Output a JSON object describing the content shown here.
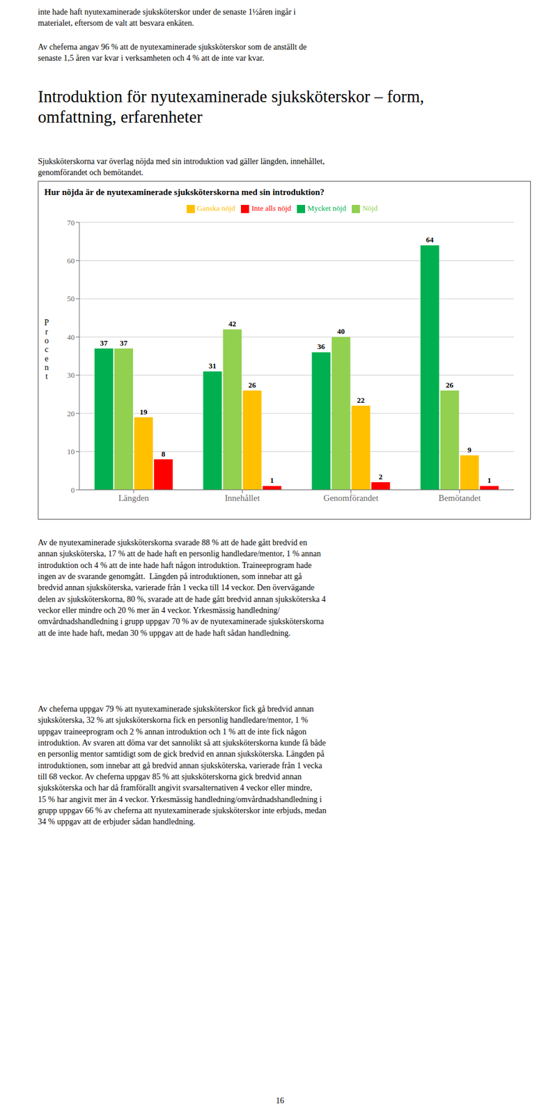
{
  "page": {
    "top_text": [
      "inte hade haft nyutexaminerade sjuksköterskor under de senaste 1½åren ingår i",
      "materialet, eftersom de valt att besvara enkäten."
    ],
    "para1": [
      "Av cheferna angav 96 % att de nyutexaminerade sjuksköterskor som de anställt de",
      "senaste 1,5 åren var kvar i verksamheten och 4 % att de inte var kvar."
    ],
    "heading": [
      "Introduktion för nyutexaminerade sjuksköterskor – form,",
      "omfattning, erfarenheter"
    ],
    "subheading": [
      "Sjuksköterskorna var överlag nöjda med sin introduktion vad gäller längden, innehållet,",
      "genomförandet och bemötandet."
    ],
    "body1": [
      "Av de nyutexaminerade sjuksköterskorna svarade 88 % att de hade gått bredvid en",
      "annan sjuksköterska, 17 % att de hade haft en personlig handledare/mentor, 1 % annan",
      "introduktion och 4 % att de inte hade haft någon introduktion. Traineeprogram hade",
      "ingen av de svarande genomgått.  Längden på introduktionen, som innebar att gå",
      "bredvid annan sjuksköterska, varierade från 1 vecka till 14 veckor. Den övervägande",
      "delen av sjuksköterskorna, 80 %, svarade att de hade gått bredvid annan sjuksköterska 4",
      "veckor eller mindre och 20 % mer än 4 veckor. Yrkesmässig handledning/",
      "omvårdnadshandledning i grupp uppgav 70 % av de nyutexaminerade sjuksköterskorna",
      "att de inte hade haft, medan 30 % uppgav att de hade haft sådan handledning."
    ],
    "body2": [
      "Av cheferna uppgav 79 % att nyutexaminerade sjuksköterskor fick gå bredvid annan",
      "sjuksköterska, 32 % att sjuksköterskorna fick en personlig handledare/mentor, 1 %",
      "uppgav traineeprogram och 2 % annan introduktion och 1 % att de inte fick någon",
      "introduktion. Av svaren att döma var det sannolikt så att sjuksköterskorna kunde få både",
      "en personlig mentor samtidigt som de gick bredvid en annan sjuksköterska. Längden på",
      "introduktionen, som innebar att gå bredvid annan sjuksköterska, varierade från 1 vecka",
      "till 68 veckor. Av cheferna uppgav 85 % att sjuksköterskorna gick bredvid annan",
      "sjuksköterska och har då framförallt angivit svarsalternativen 4 veckor eller mindre,",
      "15 % har angivit mer än 4 veckor. Yrkesmässig handledning/omvårdnadshandledning i",
      "grupp uppgav 66 % av cheferna att nyutexaminerade sjuksköterskor inte erbjuds, medan",
      "34 % uppgav att de erbjuder sådan handledning."
    ],
    "page_number": "16"
  },
  "chart_data": {
    "type": "bar",
    "title": "Hur nöjda är de nyutexaminerade sjuksköterskorna med sin introduktion?",
    "ylabel": "Procent",
    "categories": [
      "Längden",
      "Innehållet",
      "Genomförandet",
      "Bemötandet"
    ],
    "series": [
      {
        "name": "Mycket nöjd",
        "color": "#00b050",
        "values": [
          37,
          31,
          36,
          64
        ]
      },
      {
        "name": "Nöjd",
        "color": "#92d050",
        "values": [
          37,
          42,
          40,
          26
        ]
      },
      {
        "name": "Ganska nöjd",
        "color": "#ffc000",
        "values": [
          19,
          26,
          22,
          9
        ]
      },
      {
        "name": "Inte alls nöjd",
        "color": "#ff0000",
        "values": [
          8,
          1,
          2,
          1
        ]
      }
    ],
    "ylim": [
      0,
      70
    ],
    "yticks": [
      0,
      10,
      20,
      30,
      40,
      50,
      60,
      70
    ],
    "grid": true,
    "legend": "top",
    "data_labels": true
  }
}
